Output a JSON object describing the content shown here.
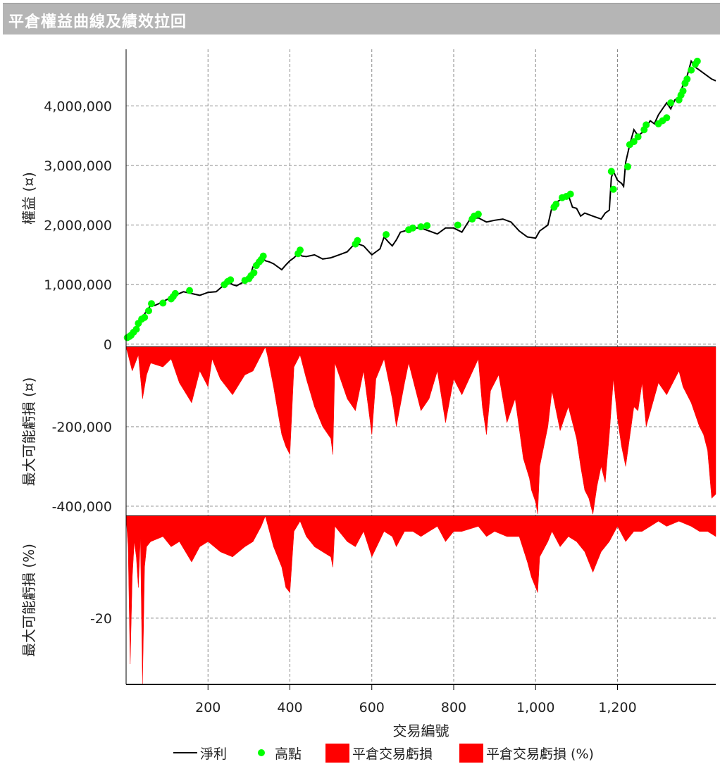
{
  "window": {
    "title": "平倉權益曲線及績效拉回"
  },
  "chart_data": [
    {
      "type": "line",
      "panel": "equity",
      "ylabel": "權益 (¤)",
      "ylim": [
        -50000,
        4950000
      ],
      "yticks": [
        0,
        1000000,
        2000000,
        3000000,
        4000000
      ],
      "ytick_labels": [
        "0",
        "1,000,000",
        "2,000,000",
        "3,000,000",
        "4,000,000"
      ],
      "xlim": [
        0,
        1440
      ],
      "grid": true,
      "series": [
        {
          "name": "淨利",
          "color": "#000000",
          "x": [
            0,
            10,
            20,
            30,
            40,
            50,
            60,
            70,
            80,
            100,
            120,
            140,
            160,
            180,
            200,
            220,
            240,
            250,
            260,
            270,
            280,
            290,
            300,
            310,
            320,
            330,
            340,
            350,
            360,
            370,
            380,
            390,
            400,
            410,
            420,
            430,
            440,
            460,
            480,
            500,
            520,
            540,
            560,
            580,
            600,
            620,
            630,
            640,
            650,
            660,
            670,
            680,
            700,
            720,
            740,
            760,
            780,
            800,
            820,
            840,
            860,
            880,
            900,
            920,
            940,
            960,
            980,
            1000,
            1010,
            1020,
            1030,
            1040,
            1050,
            1060,
            1070,
            1080,
            1090,
            1100,
            1110,
            1120,
            1140,
            1160,
            1170,
            1180,
            1185,
            1190,
            1200,
            1210,
            1215,
            1220,
            1230,
            1240,
            1250,
            1260,
            1270,
            1280,
            1290,
            1300,
            1310,
            1320,
            1330,
            1340,
            1350,
            1360,
            1370,
            1380,
            1390,
            1400,
            1410,
            1420,
            1430,
            1440
          ],
          "values": [
            100000,
            130000,
            200000,
            380000,
            450000,
            560000,
            650000,
            650000,
            680000,
            750000,
            820000,
            880000,
            850000,
            820000,
            870000,
            880000,
            1000000,
            1050000,
            1000000,
            980000,
            1020000,
            1050000,
            1100000,
            1300000,
            1400000,
            1480000,
            1400000,
            1380000,
            1350000,
            1300000,
            1250000,
            1330000,
            1400000,
            1450000,
            1520000,
            1480000,
            1470000,
            1500000,
            1430000,
            1450000,
            1500000,
            1550000,
            1700000,
            1650000,
            1500000,
            1600000,
            1800000,
            1720000,
            1650000,
            1750000,
            1880000,
            1900000,
            1950000,
            1950000,
            1900000,
            1850000,
            1950000,
            1950000,
            1880000,
            2100000,
            2120000,
            2050000,
            2080000,
            2100000,
            2050000,
            1900000,
            1800000,
            1780000,
            1900000,
            1950000,
            2000000,
            2300000,
            2380000,
            2420000,
            2450000,
            2500000,
            2300000,
            2280000,
            2150000,
            2200000,
            2150000,
            2100000,
            2200000,
            2250000,
            2800000,
            2900000,
            2750000,
            2700000,
            2650000,
            3050000,
            3350000,
            3600000,
            3500000,
            3550000,
            3650000,
            3750000,
            3700000,
            3850000,
            3950000,
            4050000,
            3950000,
            4100000,
            4150000,
            4350000,
            4500000,
            4750000,
            4650000,
            4600000,
            4550000,
            4500000,
            4450000,
            4420000
          ]
        },
        {
          "name": "高點",
          "type": "scatter",
          "color": "#00ff00",
          "x": [
            3,
            8,
            12,
            18,
            25,
            30,
            38,
            45,
            55,
            62,
            90,
            110,
            115,
            120,
            155,
            240,
            248,
            255,
            290,
            300,
            305,
            312,
            318,
            325,
            330,
            335,
            420,
            425,
            560,
            565,
            635,
            690,
            700,
            720,
            735,
            810,
            845,
            850,
            860,
            1045,
            1050,
            1065,
            1075,
            1085,
            1185,
            1190,
            1225,
            1230,
            1240,
            1250,
            1265,
            1270,
            1300,
            1310,
            1320,
            1330,
            1350,
            1355,
            1360,
            1365,
            1370,
            1380,
            1390,
            1395
          ],
          "values": [
            110000,
            130000,
            150000,
            200000,
            250000,
            350000,
            420000,
            450000,
            560000,
            680000,
            690000,
            760000,
            800000,
            850000,
            900000,
            1000000,
            1050000,
            1080000,
            1070000,
            1100000,
            1150000,
            1200000,
            1320000,
            1380000,
            1420000,
            1480000,
            1520000,
            1580000,
            1680000,
            1740000,
            1840000,
            1920000,
            1950000,
            1970000,
            1990000,
            2000000,
            2100000,
            2150000,
            2180000,
            2300000,
            2350000,
            2460000,
            2480000,
            2520000,
            2900000,
            2600000,
            2980000,
            3350000,
            3400000,
            3480000,
            3600000,
            3680000,
            3700000,
            3750000,
            3800000,
            4050000,
            4100000,
            4180000,
            4250000,
            4380000,
            4450000,
            4600000,
            4700000,
            4750000
          ]
        }
      ]
    },
    {
      "type": "area",
      "panel": "drawdown_value",
      "ylabel": "最大可能虧損 (¤)",
      "ylim": [
        -425000,
        0
      ],
      "yticks": [
        -200000,
        -400000
      ],
      "ytick_labels": [
        "-200,000",
        "-400,000"
      ],
      "xlim": [
        0,
        1440
      ],
      "grid": true,
      "series": [
        {
          "name": "平倉交易虧損",
          "color": "#ff0000",
          "x": [
            0,
            15,
            30,
            40,
            50,
            60,
            90,
            110,
            130,
            160,
            180,
            200,
            210,
            230,
            260,
            290,
            310,
            330,
            340,
            345,
            360,
            370,
            380,
            390,
            400,
            410,
            425,
            440,
            460,
            480,
            500,
            505,
            510,
            540,
            560,
            580,
            600,
            610,
            630,
            650,
            660,
            680,
            690,
            700,
            720,
            740,
            760,
            780,
            800,
            820,
            860,
            870,
            880,
            890,
            910,
            930,
            950,
            970,
            985,
            990,
            1000,
            1005,
            1010,
            1030,
            1040,
            1060,
            1080,
            1100,
            1110,
            1120,
            1130,
            1140,
            1150,
            1160,
            1170,
            1180,
            1190,
            1200,
            1210,
            1220,
            1240,
            1250,
            1260,
            1270,
            1300,
            1320,
            1350,
            1360,
            1380,
            1400,
            1410,
            1420,
            1430,
            1440
          ],
          "values": [
            0,
            -60000,
            -20000,
            -130000,
            -70000,
            -40000,
            -50000,
            -30000,
            -90000,
            -140000,
            -60000,
            -100000,
            -30000,
            -80000,
            -120000,
            -70000,
            -60000,
            -20000,
            0,
            -20000,
            -100000,
            -160000,
            -220000,
            -250000,
            -270000,
            -50000,
            -20000,
            -80000,
            -150000,
            -200000,
            -230000,
            -270000,
            -40000,
            -130000,
            -160000,
            -60000,
            -220000,
            -80000,
            -30000,
            -130000,
            -200000,
            -90000,
            -40000,
            -80000,
            -160000,
            -130000,
            -60000,
            -190000,
            -80000,
            -120000,
            -30000,
            -150000,
            -220000,
            -110000,
            -70000,
            -190000,
            -130000,
            -280000,
            -330000,
            -360000,
            -390000,
            -420000,
            -300000,
            -200000,
            -110000,
            -210000,
            -150000,
            -230000,
            -300000,
            -360000,
            -380000,
            -420000,
            -350000,
            -300000,
            -340000,
            -220000,
            -80000,
            -180000,
            -250000,
            -300000,
            -150000,
            -160000,
            -90000,
            -200000,
            -90000,
            -120000,
            -60000,
            -100000,
            -140000,
            -200000,
            -220000,
            -260000,
            -380000,
            -370000
          ]
        }
      ]
    },
    {
      "type": "area",
      "panel": "drawdown_percent",
      "ylabel": "最大可能虧損 (%)",
      "ylim": [
        -33,
        0
      ],
      "yticks": [
        -20
      ],
      "ytick_labels": [
        "-20"
      ],
      "xlim": [
        0,
        1440
      ],
      "xticks": [
        200,
        400,
        600,
        800,
        1000,
        1200
      ],
      "xtick_labels": [
        "200",
        "400",
        "600",
        "800",
        "1,000",
        "1,200"
      ],
      "xlabel": "交易編號",
      "grid": true,
      "series": [
        {
          "name": "平倉交易虧損 (%)",
          "color": "#ff0000",
          "x": [
            0,
            5,
            10,
            15,
            20,
            25,
            30,
            35,
            40,
            45,
            50,
            60,
            90,
            110,
            130,
            160,
            180,
            200,
            230,
            260,
            290,
            310,
            330,
            340,
            360,
            380,
            390,
            400,
            410,
            425,
            440,
            460,
            480,
            500,
            505,
            510,
            540,
            560,
            580,
            600,
            630,
            650,
            660,
            680,
            700,
            720,
            740,
            760,
            780,
            800,
            820,
            860,
            880,
            900,
            930,
            960,
            980,
            990,
            1000,
            1005,
            1010,
            1030,
            1040,
            1060,
            1080,
            1100,
            1120,
            1140,
            1150,
            1160,
            1180,
            1200,
            1220,
            1240,
            1260,
            1280,
            1300,
            1320,
            1350,
            1380,
            1400,
            1420,
            1440
          ],
          "values": [
            0,
            -6,
            -29,
            -12,
            -5,
            -8,
            -14,
            -4,
            -33,
            -10,
            -6,
            -5,
            -4,
            -6,
            -5,
            -9,
            -6,
            -5,
            -7,
            -8,
            -6,
            -5,
            -2,
            0,
            -6,
            -10,
            -14,
            -15,
            -3,
            -1,
            -4,
            -6,
            -7,
            -8,
            -10,
            -2,
            -5,
            -6,
            -3,
            -8,
            -3,
            -4,
            -6,
            -3,
            -3,
            -4,
            -3,
            -2,
            -5,
            -3,
            -3,
            -2,
            -4,
            -3,
            -4,
            -4,
            -9,
            -12,
            -14,
            -15,
            -8,
            -5,
            -3,
            -6,
            -4,
            -5,
            -7,
            -11,
            -9,
            -7,
            -5,
            -2,
            -5,
            -3,
            -3,
            -2,
            -1,
            -2,
            -1,
            -2,
            -3,
            -3,
            -4
          ]
        }
      ]
    }
  ],
  "legend": {
    "position": "bottom",
    "items": [
      {
        "label": "淨利",
        "symbol": "line"
      },
      {
        "label": "高點",
        "symbol": "dot"
      },
      {
        "label": "平倉交易虧損",
        "symbol": "box"
      },
      {
        "label": "平倉交易虧損 (%)",
        "symbol": "box"
      }
    ]
  }
}
